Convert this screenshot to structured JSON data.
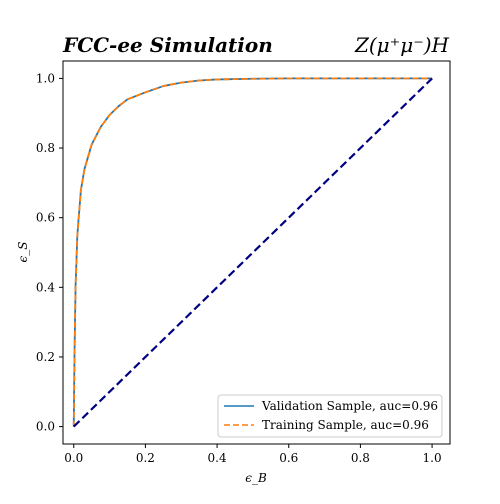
{
  "chart_data": {
    "type": "line",
    "title_left": "FCC-ee Simulation",
    "title_right": "Z(μ⁺μ⁻)H",
    "xlabel": "ϵ_B",
    "ylabel": "ϵ_S",
    "xlim": [
      -0.03,
      1.05
    ],
    "ylim": [
      -0.05,
      1.05
    ],
    "xticks": [
      0.0,
      0.2,
      0.4,
      0.6,
      0.8,
      1.0
    ],
    "yticks": [
      0.0,
      0.2,
      0.4,
      0.6,
      0.8,
      1.0
    ],
    "xtick_labels": [
      "0.0",
      "0.2",
      "0.4",
      "0.6",
      "0.8",
      "1.0"
    ],
    "ytick_labels": [
      "0.0",
      "0.2",
      "0.4",
      "0.6",
      "0.8",
      "1.0"
    ],
    "grid": false,
    "legend_placement": "lower-right",
    "series": [
      {
        "name": "Validation Sample, auc=0.96",
        "color": "#1f77b4",
        "style": "solid",
        "x": [
          0.0,
          0.002,
          0.005,
          0.01,
          0.02,
          0.03,
          0.05,
          0.075,
          0.1,
          0.125,
          0.15,
          0.2,
          0.25,
          0.3,
          0.35,
          0.4,
          0.5,
          0.6,
          0.8,
          1.0
        ],
        "y": [
          0.0,
          0.2,
          0.4,
          0.55,
          0.68,
          0.74,
          0.81,
          0.86,
          0.895,
          0.92,
          0.94,
          0.96,
          0.978,
          0.988,
          0.994,
          0.997,
          0.999,
          1.0,
          1.0,
          1.0
        ]
      },
      {
        "name": "Training Sample, auc=0.96",
        "color": "#ff7f0e",
        "style": "dashed",
        "x": [
          0.0,
          0.002,
          0.005,
          0.01,
          0.02,
          0.03,
          0.05,
          0.075,
          0.1,
          0.125,
          0.15,
          0.2,
          0.25,
          0.3,
          0.35,
          0.4,
          0.5,
          0.6,
          0.8,
          1.0
        ],
        "y": [
          0.0,
          0.2,
          0.4,
          0.55,
          0.68,
          0.74,
          0.81,
          0.86,
          0.895,
          0.92,
          0.94,
          0.96,
          0.978,
          0.988,
          0.994,
          0.997,
          0.999,
          1.0,
          1.0,
          1.0
        ]
      }
    ],
    "reference_line": {
      "x": [
        0.0,
        1.0
      ],
      "y": [
        0.0,
        1.0
      ],
      "color": "#000080",
      "style": "dashed"
    }
  }
}
